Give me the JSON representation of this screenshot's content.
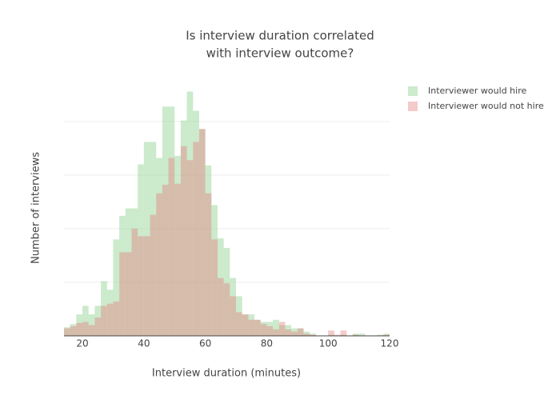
{
  "chart_data": {
    "type": "histogram",
    "title": [
      "Is interview duration correlated",
      "with interview outcome?"
    ],
    "x_label": "Interview duration (minutes)",
    "y_label": "Number of interviews",
    "bins": [
      14,
      16,
      18,
      20,
      22,
      24,
      26,
      28,
      30,
      32,
      34,
      36,
      38,
      40,
      42,
      44,
      46,
      48,
      50,
      52,
      54,
      56,
      58,
      60,
      62,
      64,
      66,
      68,
      70,
      72,
      74,
      76,
      78,
      80,
      82,
      84,
      86,
      88,
      90,
      92,
      94,
      96,
      98,
      100,
      102,
      104,
      106,
      108,
      110,
      112,
      114,
      116,
      118,
      120
    ],
    "series": [
      {
        "name": "Interviewer would hire",
        "color": "#8fd18f",
        "opacity": 0.45,
        "values": [
          8,
          11,
          20,
          28,
          20,
          28,
          51,
          43,
          90,
          112,
          119,
          119,
          160,
          181,
          181,
          166,
          214,
          214,
          168,
          201,
          228,
          210,
          193,
          159,
          122,
          91,
          82,
          54,
          37,
          20,
          20,
          15,
          13,
          13,
          15,
          10,
          10,
          7,
          7,
          4,
          2,
          0,
          0,
          1,
          0,
          1,
          0,
          2,
          2,
          0,
          0,
          1,
          2
        ]
      },
      {
        "name": "Interviewer would not hire",
        "color": "#e67a7a",
        "opacity": 0.4,
        "values": [
          7,
          9,
          12,
          13,
          10,
          17,
          28,
          30,
          32,
          78,
          78,
          100,
          93,
          93,
          113,
          133,
          141,
          166,
          142,
          177,
          164,
          181,
          193,
          133,
          90,
          54,
          49,
          37,
          22,
          20,
          15,
          15,
          11,
          9,
          6,
          13,
          6,
          4,
          7,
          2,
          1,
          0,
          0,
          5,
          1,
          5,
          0,
          1,
          0,
          0,
          0,
          0,
          1
        ]
      }
    ],
    "xlim": [
      14,
      120
    ],
    "xticks": [
      20,
      40,
      60,
      80,
      100,
      120
    ],
    "ylim": [
      0,
      240
    ],
    "yticks": [
      0,
      50,
      100,
      150,
      200
    ],
    "ytick_labels": false,
    "grid": true,
    "legend": "right",
    "barmode": "overlay"
  }
}
